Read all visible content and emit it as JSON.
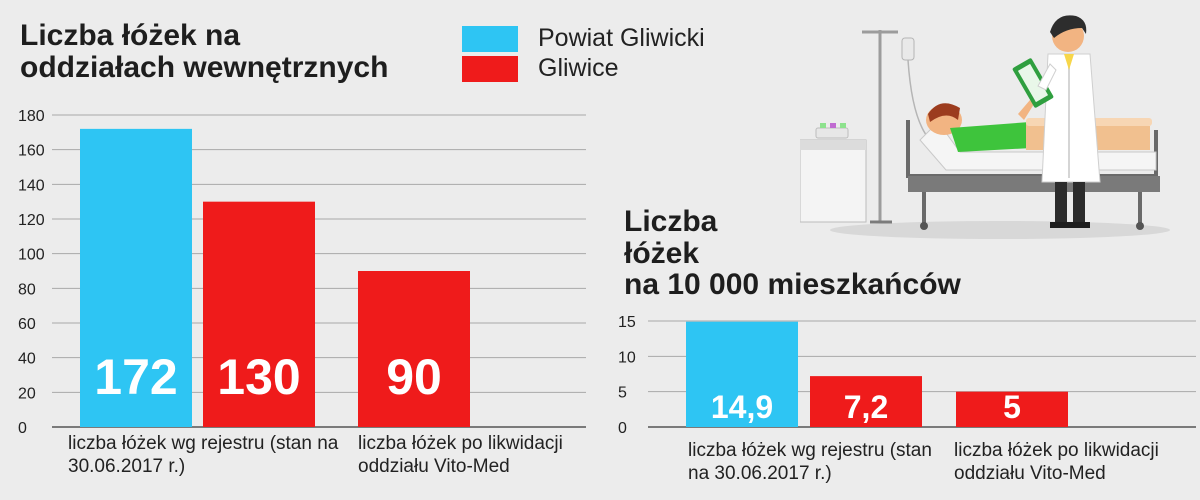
{
  "colors": {
    "powiat": "#2ec5f3",
    "gliwice": "#ef1b1b",
    "grid": "#a9a9a9"
  },
  "legend": {
    "items": [
      {
        "label": "Powiat Gliwicki",
        "color": "#2ec5f3"
      },
      {
        "label": "Gliwice",
        "color": "#ef1b1b"
      }
    ]
  },
  "chart_data": [
    {
      "type": "bar",
      "title": "Liczba łóżek na\noddziałach wewnętrznych",
      "groups": [
        "liczba łóżek wg rejestru\n(stan na 30.06.2017 r.)",
        "liczba łóżek po likwidacji\noddziału Vito-Med"
      ],
      "bars": [
        {
          "group": 0,
          "series": "Powiat Gliwicki",
          "value": 172,
          "label": "172"
        },
        {
          "group": 0,
          "series": "Gliwice",
          "value": 130,
          "label": "130"
        },
        {
          "group": 1,
          "series": "Gliwice",
          "value": 90,
          "label": "90"
        }
      ],
      "yticks": [
        0,
        20,
        40,
        60,
        80,
        100,
        120,
        140,
        160,
        180
      ],
      "ylim": [
        0,
        180
      ],
      "grid": true
    },
    {
      "type": "bar",
      "title": "Liczba\nłóżek\nna 10 000 mieszkańców",
      "groups": [
        "liczba łóżek wg rejestru\n(stan na 30.06.2017 r.)",
        "liczba łóżek po likwidacji\noddziału Vito-Med"
      ],
      "bars": [
        {
          "group": 0,
          "series": "Powiat Gliwicki",
          "value": 14.9,
          "label": "14,9"
        },
        {
          "group": 0,
          "series": "Gliwice",
          "value": 7.2,
          "label": "7,2"
        },
        {
          "group": 1,
          "series": "Gliwice",
          "value": 5,
          "label": "5"
        }
      ],
      "yticks": [
        0,
        5,
        10,
        15
      ],
      "ylim": [
        0,
        15
      ],
      "grid": true
    }
  ]
}
